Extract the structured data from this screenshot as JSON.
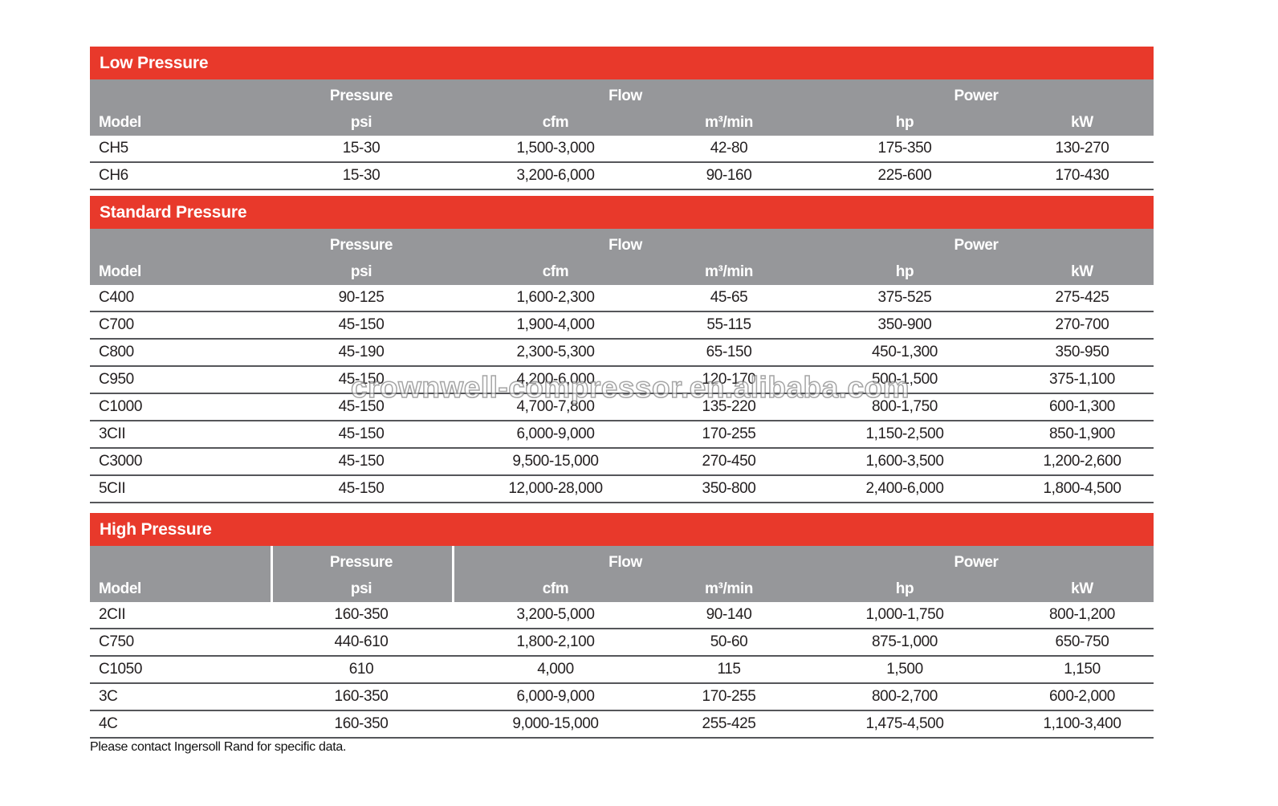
{
  "colors": {
    "banner_red": "#E8392B",
    "header_gray": "#96979A",
    "row_line": "#55565A",
    "text_dark": "#231F20"
  },
  "header": {
    "groups": [
      "Pressure",
      "Flow",
      "Power"
    ],
    "units": [
      "Model",
      "psi",
      "cfm",
      "m³/min",
      "hp",
      "kW"
    ]
  },
  "sections": [
    {
      "title": "Low Pressure",
      "header_dividers": false,
      "rows": [
        {
          "cells": [
            "CH5",
            "15-30",
            "1,500-3,000",
            "42-80",
            "175-350",
            "130-270"
          ]
        },
        {
          "cells": [
            "CH6",
            "15-30",
            "3,200-6,000",
            "90-160",
            "225-600",
            "170-430"
          ]
        }
      ]
    },
    {
      "title": "Standard Pressure",
      "header_dividers": false,
      "rows": [
        {
          "cells": [
            "C400",
            "90-125",
            "1,600-2,300",
            "45-65",
            "375-525",
            "275-425"
          ]
        },
        {
          "cells": [
            "C700",
            "45-150",
            "1,900-4,000",
            "55-115",
            "350-900",
            "270-700"
          ]
        },
        {
          "cells": [
            "C800",
            "45-190",
            "2,300-5,300",
            "65-150",
            "450-1,300",
            "350-950"
          ]
        },
        {
          "cells": [
            "C950",
            "45-150",
            "4,200-6,000",
            "120-170",
            "500-1,500",
            "375-1,100"
          ]
        },
        {
          "cells": [
            "C1000",
            "45-150",
            "4,700-7,800",
            "135-220",
            "800-1,750",
            "600-1,300"
          ]
        },
        {
          "cells": [
            "3CII",
            "45-150",
            "6,000-9,000",
            "170-255",
            "1,150-2,500",
            "850-1,900"
          ]
        },
        {
          "cells": [
            "C3000",
            "45-150",
            "9,500-15,000",
            "270-450",
            "1,600-3,500",
            "1,200-2,600"
          ]
        },
        {
          "cells": [
            "5CII",
            "45-150",
            "12,000-28,000",
            "350-800",
            "2,400-6,000",
            "1,800-4,500"
          ]
        }
      ]
    },
    {
      "title": "High Pressure",
      "header_dividers": true,
      "rows": [
        {
          "cells": [
            "2CII",
            "160-350",
            "3,200-5,000",
            "90-140",
            "1,000-1,750",
            "800-1,200"
          ]
        },
        {
          "cells": [
            "C750",
            "440-610",
            "1,800-2,100",
            "50-60",
            "875-1,000",
            "650-750"
          ]
        },
        {
          "cells": [
            "C1050",
            "610",
            "4,000",
            "115",
            "1,500",
            "1,150"
          ]
        },
        {
          "cells": [
            "3C",
            "160-350",
            "6,000-9,000",
            "170-255",
            "800-2,700",
            "600-2,000"
          ]
        },
        {
          "cells": [
            "4C",
            "160-350",
            "9,000-15,000",
            "255-425",
            "1,475-4,500",
            "1,100-3,400"
          ]
        }
      ]
    }
  ],
  "footnote": "Please contact Ingersoll Rand for specific data.",
  "watermark": {
    "text": "crownwell-compressor.en.alibaba.com"
  }
}
